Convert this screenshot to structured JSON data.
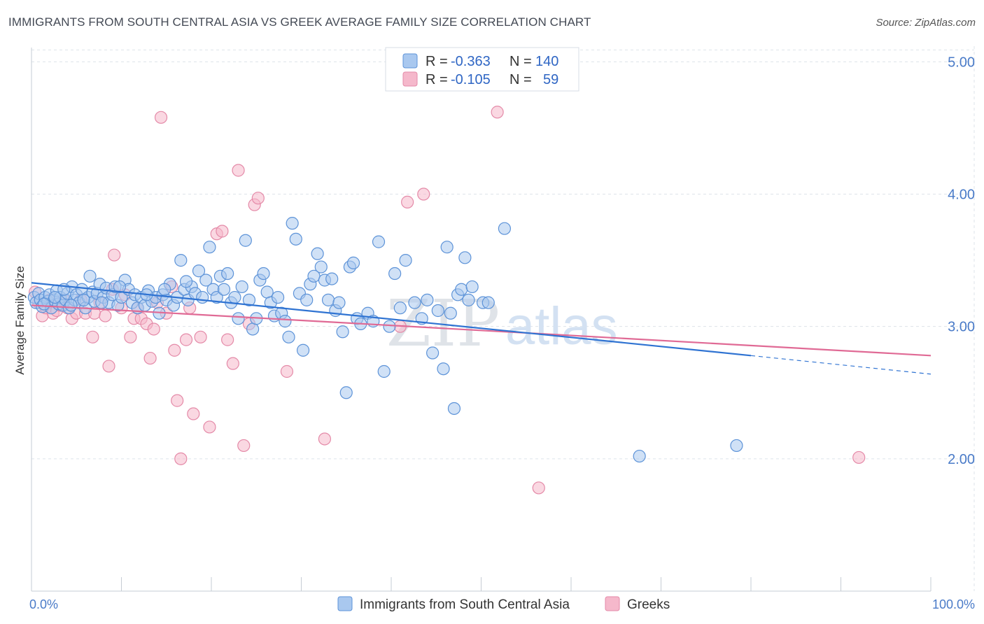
{
  "title": "IMMIGRANTS FROM SOUTH CENTRAL ASIA VS GREEK AVERAGE FAMILY SIZE CORRELATION CHART",
  "source": "Source: ZipAtlas.com",
  "watermark": {
    "zip": "ZIP",
    "atlas": "atlas"
  },
  "colors": {
    "blue_fill": "#a9c8ef",
    "blue_stroke": "#5d93d8",
    "blue_line": "#2f73d2",
    "pink_fill": "#f5b8cb",
    "pink_stroke": "#e48aa8",
    "pink_line": "#e06a95",
    "grid": "#dde3ea",
    "axis_text": "#4a7bc8"
  },
  "legend": {
    "rows": [
      {
        "r_label": "R =",
        "r_value": "-0.363",
        "n_label": "N =",
        "n_value": "140"
      },
      {
        "r_label": "R =",
        "r_value": "-0.105",
        "n_label": "N =",
        "n_value": "59"
      }
    ]
  },
  "chart_data": {
    "type": "scatter",
    "xlabel": "",
    "ylabel": "Average Family Size",
    "xlim": [
      0,
      100
    ],
    "ylim": [
      1.0,
      5.15
    ],
    "x_tick_labels": [
      "0.0%",
      "100.0%"
    ],
    "y_ticks": [
      2.0,
      3.0,
      4.0,
      5.0
    ],
    "y_tick_labels": [
      "2.00",
      "3.00",
      "4.00",
      "5.00"
    ],
    "grid": true,
    "legend_position": "top-center",
    "series": [
      {
        "name": "Immigrants from South Central Asia",
        "color": "#5d93d8",
        "trend": {
          "x0": 0,
          "y0": 3.33,
          "x1": 80,
          "y1": 2.78,
          "dash_x1": 100,
          "dash_y1": 2.64
        },
        "points": [
          [
            0.3,
            3.22
          ],
          [
            0.5,
            3.18
          ],
          [
            0.8,
            3.25
          ],
          [
            1.0,
            3.2
          ],
          [
            1.2,
            3.15
          ],
          [
            1.5,
            3.22
          ],
          [
            1.8,
            3.19
          ],
          [
            2.0,
            3.24
          ],
          [
            2.2,
            3.14
          ],
          [
            2.5,
            3.2
          ],
          [
            2.8,
            3.27
          ],
          [
            3.0,
            3.17
          ],
          [
            3.2,
            3.22
          ],
          [
            3.5,
            3.16
          ],
          [
            3.8,
            3.2
          ],
          [
            4.0,
            3.25
          ],
          [
            4.2,
            3.14
          ],
          [
            4.5,
            3.3
          ],
          [
            4.8,
            3.2
          ],
          [
            5.0,
            3.24
          ],
          [
            5.3,
            3.18
          ],
          [
            5.6,
            3.28
          ],
          [
            6.0,
            3.14
          ],
          [
            6.3,
            3.22
          ],
          [
            6.5,
            3.38
          ],
          [
            6.8,
            3.26
          ],
          [
            7.0,
            3.19
          ],
          [
            7.3,
            3.25
          ],
          [
            7.6,
            3.32
          ],
          [
            8.0,
            3.22
          ],
          [
            8.3,
            3.29
          ],
          [
            8.6,
            3.18
          ],
          [
            9.0,
            3.24
          ],
          [
            9.3,
            3.3
          ],
          [
            9.6,
            3.16
          ],
          [
            10.0,
            3.22
          ],
          [
            10.4,
            3.35
          ],
          [
            10.8,
            3.28
          ],
          [
            11.2,
            3.18
          ],
          [
            11.5,
            3.24
          ],
          [
            11.8,
            3.14
          ],
          [
            12.2,
            3.22
          ],
          [
            12.6,
            3.16
          ],
          [
            13.0,
            3.27
          ],
          [
            13.4,
            3.19
          ],
          [
            13.8,
            3.22
          ],
          [
            14.2,
            3.1
          ],
          [
            14.6,
            3.24
          ],
          [
            15.0,
            3.2
          ],
          [
            15.4,
            3.32
          ],
          [
            15.8,
            3.16
          ],
          [
            16.2,
            3.22
          ],
          [
            16.6,
            3.5
          ],
          [
            17.0,
            3.28
          ],
          [
            17.4,
            3.2
          ],
          [
            17.8,
            3.3
          ],
          [
            18.2,
            3.25
          ],
          [
            18.6,
            3.42
          ],
          [
            19.0,
            3.22
          ],
          [
            19.4,
            3.35
          ],
          [
            19.8,
            3.6
          ],
          [
            20.2,
            3.28
          ],
          [
            20.6,
            3.22
          ],
          [
            21.0,
            3.38
          ],
          [
            21.4,
            3.28
          ],
          [
            21.8,
            3.4
          ],
          [
            22.2,
            3.18
          ],
          [
            22.6,
            3.22
          ],
          [
            23.0,
            3.06
          ],
          [
            23.4,
            3.3
          ],
          [
            23.8,
            3.65
          ],
          [
            24.2,
            3.2
          ],
          [
            24.6,
            2.98
          ],
          [
            25.0,
            3.06
          ],
          [
            25.4,
            3.35
          ],
          [
            25.8,
            3.4
          ],
          [
            26.2,
            3.26
          ],
          [
            26.6,
            3.18
          ],
          [
            27.0,
            3.08
          ],
          [
            27.4,
            3.22
          ],
          [
            27.8,
            3.1
          ],
          [
            28.2,
            3.04
          ],
          [
            28.6,
            2.92
          ],
          [
            29.0,
            3.78
          ],
          [
            29.4,
            3.66
          ],
          [
            29.8,
            3.25
          ],
          [
            30.2,
            2.82
          ],
          [
            30.6,
            3.2
          ],
          [
            31.0,
            3.32
          ],
          [
            31.4,
            3.38
          ],
          [
            31.8,
            3.55
          ],
          [
            32.2,
            3.45
          ],
          [
            32.6,
            3.35
          ],
          [
            33.0,
            3.2
          ],
          [
            33.4,
            3.36
          ],
          [
            33.8,
            3.12
          ],
          [
            34.2,
            3.18
          ],
          [
            34.6,
            2.96
          ],
          [
            35.0,
            2.5
          ],
          [
            35.4,
            3.45
          ],
          [
            35.8,
            3.48
          ],
          [
            36.2,
            3.06
          ],
          [
            36.6,
            3.02
          ],
          [
            37.4,
            3.1
          ],
          [
            38.0,
            3.04
          ],
          [
            38.6,
            3.64
          ],
          [
            39.2,
            2.66
          ],
          [
            39.8,
            3.0
          ],
          [
            40.4,
            3.4
          ],
          [
            41.0,
            3.14
          ],
          [
            41.6,
            3.5
          ],
          [
            42.6,
            3.18
          ],
          [
            43.4,
            3.06
          ],
          [
            44.0,
            3.2
          ],
          [
            44.6,
            2.8
          ],
          [
            45.2,
            3.12
          ],
          [
            45.8,
            2.68
          ],
          [
            46.2,
            3.6
          ],
          [
            46.6,
            3.1
          ],
          [
            47.0,
            2.38
          ],
          [
            47.4,
            3.24
          ],
          [
            47.8,
            3.28
          ],
          [
            48.2,
            3.52
          ],
          [
            48.6,
            3.2
          ],
          [
            49.0,
            3.3
          ],
          [
            50.2,
            3.18
          ],
          [
            50.8,
            3.18
          ],
          [
            52.6,
            3.74
          ],
          [
            67.6,
            2.02
          ],
          [
            78.4,
            2.1
          ],
          [
            1.4,
            3.17
          ],
          [
            2.6,
            3.22
          ],
          [
            3.6,
            3.28
          ],
          [
            4.4,
            3.16
          ],
          [
            5.8,
            3.2
          ],
          [
            7.8,
            3.18
          ],
          [
            9.8,
            3.3
          ],
          [
            12.8,
            3.24
          ],
          [
            14.8,
            3.28
          ],
          [
            17.2,
            3.34
          ]
        ]
      },
      {
        "name": "Greeks",
        "color": "#e48aa8",
        "trend": {
          "x0": 0,
          "y0": 3.16,
          "x1": 100,
          "y1": 2.78
        },
        "points": [
          [
            0.4,
            3.26
          ],
          [
            0.8,
            3.18
          ],
          [
            1.2,
            3.08
          ],
          [
            1.6,
            3.14
          ],
          [
            2.0,
            3.2
          ],
          [
            2.4,
            3.1
          ],
          [
            2.8,
            3.12
          ],
          [
            3.2,
            3.16
          ],
          [
            3.6,
            3.2
          ],
          [
            4.0,
            3.14
          ],
          [
            4.5,
            3.06
          ],
          [
            5.0,
            3.1
          ],
          [
            5.5,
            3.2
          ],
          [
            6.0,
            3.1
          ],
          [
            6.8,
            2.92
          ],
          [
            7.0,
            3.1
          ],
          [
            7.6,
            3.18
          ],
          [
            8.2,
            3.08
          ],
          [
            8.6,
            2.7
          ],
          [
            9.0,
            3.28
          ],
          [
            9.2,
            3.54
          ],
          [
            10.0,
            3.14
          ],
          [
            10.4,
            3.24
          ],
          [
            11.0,
            2.92
          ],
          [
            11.4,
            3.06
          ],
          [
            11.8,
            3.14
          ],
          [
            12.2,
            3.06
          ],
          [
            12.8,
            3.02
          ],
          [
            13.2,
            2.76
          ],
          [
            13.6,
            2.98
          ],
          [
            14.0,
            3.18
          ],
          [
            14.4,
            4.58
          ],
          [
            15.0,
            3.1
          ],
          [
            15.6,
            3.3
          ],
          [
            15.9,
            2.82
          ],
          [
            16.2,
            2.44
          ],
          [
            16.6,
            2.0
          ],
          [
            17.2,
            2.9
          ],
          [
            17.6,
            3.14
          ],
          [
            18.0,
            2.34
          ],
          [
            18.8,
            2.92
          ],
          [
            19.8,
            2.24
          ],
          [
            20.6,
            3.7
          ],
          [
            21.2,
            3.72
          ],
          [
            21.8,
            2.9
          ],
          [
            22.4,
            2.72
          ],
          [
            23.0,
            4.18
          ],
          [
            23.6,
            2.1
          ],
          [
            24.2,
            3.02
          ],
          [
            24.8,
            3.92
          ],
          [
            25.2,
            3.97
          ],
          [
            28.4,
            2.66
          ],
          [
            32.6,
            2.15
          ],
          [
            41.0,
            3.0
          ],
          [
            41.8,
            3.94
          ],
          [
            43.6,
            4.0
          ],
          [
            51.8,
            4.62
          ],
          [
            56.4,
            1.78
          ],
          [
            92.0,
            2.01
          ]
        ]
      }
    ]
  }
}
